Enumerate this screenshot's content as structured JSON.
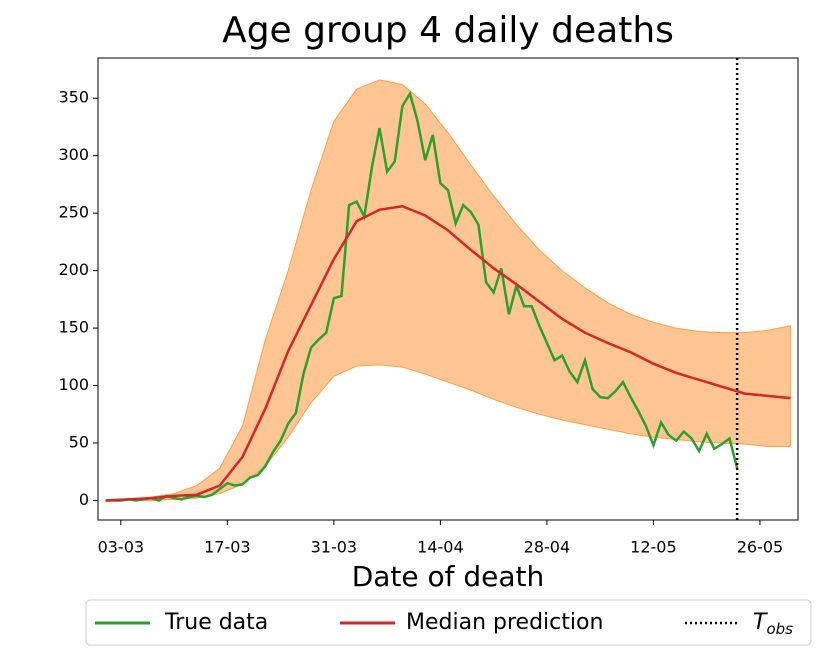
{
  "chart_data": {
    "type": "line",
    "title": "Age group 4 daily deaths",
    "xlabel": "Date of death",
    "xlim": [
      "29-02",
      "31-05"
    ],
    "xticks": [
      "03-03",
      "17-03",
      "31-03",
      "14-04",
      "28-04",
      "12-05",
      "26-05"
    ],
    "ylim": [
      -17,
      385
    ],
    "yticks": [
      0,
      50,
      100,
      150,
      200,
      250,
      300,
      350
    ],
    "grid": false,
    "band": {
      "color": "#ff9f4a",
      "x": [
        "01-03",
        "04-03",
        "07-03",
        "10-03",
        "13-03",
        "16-03",
        "19-03",
        "22-03",
        "25-03",
        "28-03",
        "31-03",
        "03-04",
        "06-04",
        "09-04",
        "12-04",
        "15-04",
        "18-04",
        "21-04",
        "24-04",
        "27-04",
        "30-04",
        "03-05",
        "06-05",
        "09-05",
        "12-05",
        "15-05",
        "18-05",
        "21-05",
        "24-05",
        "27-05",
        "30-05"
      ],
      "upper": [
        0,
        1,
        3,
        6,
        13,
        28,
        65,
        140,
        200,
        270,
        330,
        358,
        366,
        362,
        345,
        320,
        292,
        265,
        240,
        218,
        200,
        185,
        172,
        162,
        155,
        150,
        147,
        146,
        146,
        148,
        152
      ],
      "lower": [
        0,
        0,
        0,
        1,
        2,
        6,
        14,
        30,
        55,
        85,
        108,
        117,
        118,
        116,
        110,
        103,
        96,
        88,
        81,
        75,
        70,
        66,
        62,
        58,
        55,
        53,
        51,
        50,
        49,
        47,
        47
      ]
    },
    "series": [
      {
        "name": "True data",
        "color": "#2ca02c",
        "x": [
          "01-03",
          "02-03",
          "03-03",
          "04-03",
          "05-03",
          "06-03",
          "07-03",
          "08-03",
          "09-03",
          "10-03",
          "11-03",
          "12-03",
          "13-03",
          "14-03",
          "15-03",
          "16-03",
          "17-03",
          "18-03",
          "19-03",
          "20-03",
          "21-03",
          "22-03",
          "23-03",
          "24-03",
          "25-03",
          "26-03",
          "27-03",
          "28-03",
          "29-03",
          "30-03",
          "31-03",
          "01-04",
          "02-04",
          "03-04",
          "04-04",
          "05-04",
          "06-04",
          "07-04",
          "08-04",
          "09-04",
          "10-04",
          "11-04",
          "12-04",
          "13-04",
          "14-04",
          "15-04",
          "16-04",
          "17-04",
          "18-04",
          "19-04",
          "20-04",
          "21-04",
          "22-04",
          "23-04",
          "24-04",
          "25-04",
          "26-04",
          "27-04",
          "28-04",
          "29-04",
          "30-04",
          "01-05",
          "02-05",
          "03-05",
          "04-05",
          "05-05",
          "06-05",
          "07-05",
          "08-05",
          "09-05",
          "10-05",
          "11-05",
          "12-05",
          "13-05",
          "14-05",
          "15-05",
          "16-05",
          "17-05",
          "18-05",
          "19-05",
          "20-05",
          "21-05",
          "22-05",
          "23-05"
        ],
        "values": [
          0,
          0,
          0,
          1,
          0,
          1,
          2,
          0,
          4,
          2,
          1,
          3,
          4,
          3,
          5,
          10,
          15,
          13,
          14,
          20,
          22,
          30,
          42,
          52,
          67,
          76,
          110,
          133,
          140,
          146,
          176,
          178,
          257,
          260,
          247,
          290,
          324,
          286,
          295,
          343,
          354,
          330,
          296,
          318,
          276,
          270,
          241,
          257,
          251,
          240,
          190,
          181,
          202,
          162,
          187,
          169,
          169,
          152,
          137,
          122,
          126,
          112,
          103,
          122,
          97,
          90,
          89,
          95,
          103,
          90,
          78,
          65,
          48,
          68,
          57,
          52,
          60,
          54,
          43,
          58,
          45,
          49,
          54,
          28
        ]
      },
      {
        "name": "Median prediction",
        "color": "#d62728",
        "x": [
          "01-03",
          "04-03",
          "07-03",
          "10-03",
          "13-03",
          "16-03",
          "19-03",
          "22-03",
          "25-03",
          "28-03",
          "31-03",
          "03-04",
          "06-04",
          "09-04",
          "12-04",
          "15-04",
          "18-04",
          "21-04",
          "24-04",
          "27-04",
          "30-04",
          "03-05",
          "06-05",
          "09-05",
          "12-05",
          "15-05",
          "18-05",
          "21-05",
          "24-05",
          "27-05",
          "30-05"
        ],
        "values": [
          0,
          1,
          2,
          4,
          5,
          13,
          38,
          80,
          130,
          170,
          210,
          243,
          253,
          256,
          248,
          235,
          218,
          202,
          188,
          173,
          158,
          146,
          137,
          129,
          119,
          111,
          105,
          99,
          93,
          91,
          89
        ]
      }
    ],
    "vline": {
      "x": "23-05",
      "name": "T",
      "subscript": "obs",
      "color": "#000000"
    }
  }
}
